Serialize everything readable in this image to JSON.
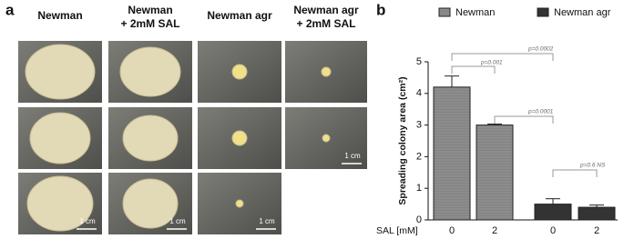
{
  "panel_a": {
    "label": "a",
    "headers": [
      [
        "Newman"
      ],
      [
        "Newman",
        "+ 2mM SAL"
      ],
      [
        "Newman agr"
      ],
      [
        "Newman agr",
        "+ 2mM SAL"
      ]
    ],
    "scale_bar": "1 cm"
  },
  "chart_data": {
    "type": "bar",
    "label": "b",
    "y_label": "Spreading colony area (cm²)",
    "x_label": "SAL [mM]",
    "categories": [
      "0",
      "2",
      "0",
      "2"
    ],
    "series": [
      {
        "name": "Newman",
        "color": "#8c8c8c",
        "values": [
          4.2,
          3.0,
          null,
          null
        ],
        "errors": [
          0.35,
          0.03,
          null,
          null
        ]
      },
      {
        "name": "Newman agr",
        "color": "#333333",
        "values": [
          null,
          null,
          0.5,
          0.4
        ],
        "errors": [
          null,
          null,
          0.17,
          0.07
        ]
      }
    ],
    "ylim": [
      0,
      5
    ],
    "yticks": [
      0,
      1,
      2,
      3,
      4,
      5
    ],
    "annotations": [
      "p=0.001",
      "p=0.0002",
      "p=0.0001",
      "p=0.6 NS"
    ]
  }
}
